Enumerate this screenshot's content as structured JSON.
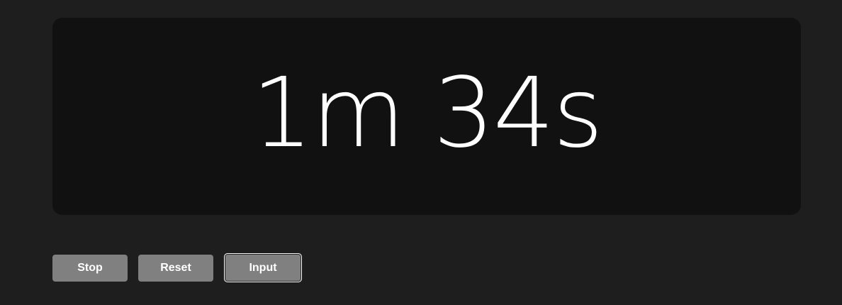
{
  "timer": {
    "display": "1m 34s"
  },
  "controls": {
    "stop_label": "Stop",
    "reset_label": "Reset",
    "input_label": "Input"
  },
  "colors": {
    "background": "#1e1e1e",
    "panel": "#111111",
    "button": "#808080",
    "text": "#ffffff"
  }
}
